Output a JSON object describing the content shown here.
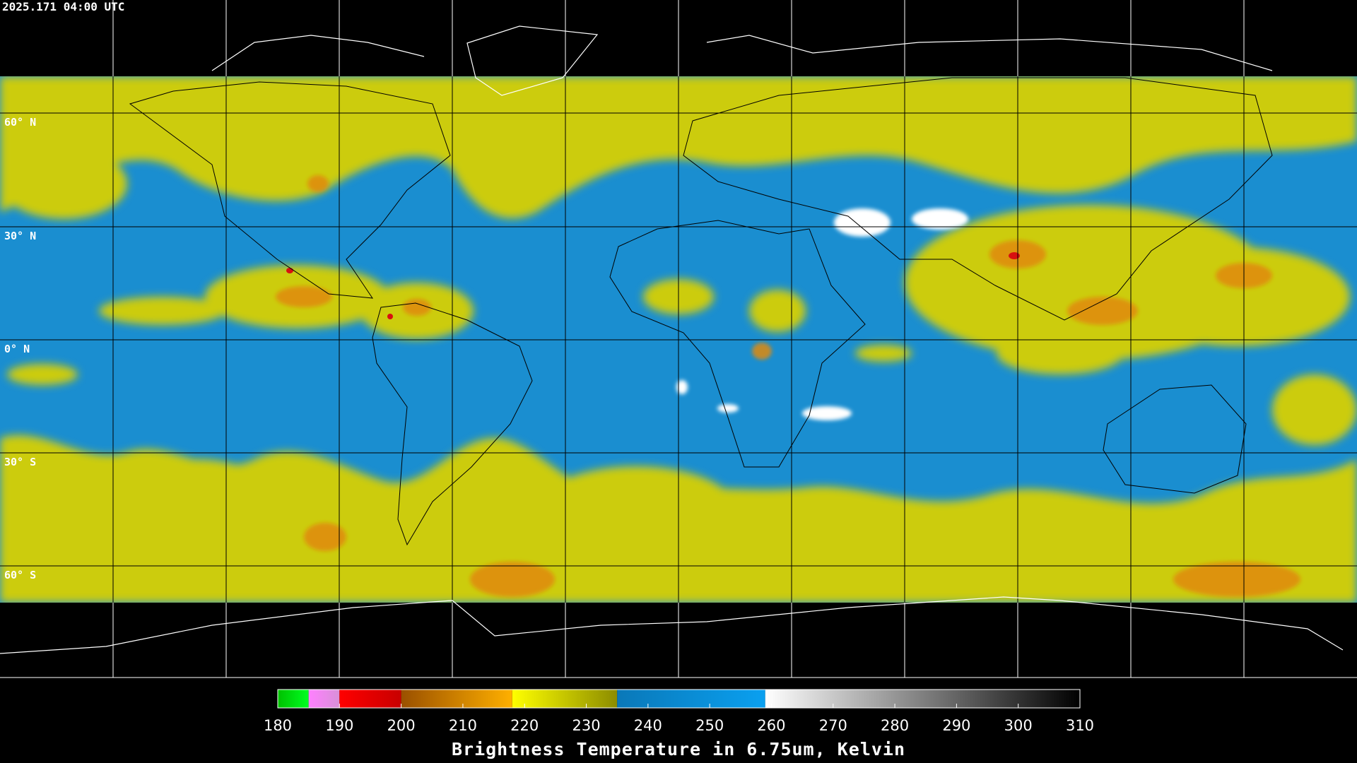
{
  "header": {
    "timestamp": "2025.171 04:00 UTC"
  },
  "map": {
    "lat_labels": [
      "60° N",
      "30° N",
      "0° N",
      "30° S",
      "60° S"
    ]
  },
  "colorbar": {
    "type": "colorbar",
    "label": "Brightness Temperature in 6.75um, Kelvin",
    "lim": [
      180,
      310
    ],
    "ticks": [
      180,
      190,
      200,
      210,
      220,
      230,
      240,
      250,
      260,
      270,
      280,
      290,
      300,
      310
    ],
    "segments": [
      {
        "from": 180,
        "to": 185,
        "colors": [
          "#00c000",
          "#00ff20"
        ]
      },
      {
        "from": 185,
        "to": 190,
        "colors": [
          "#ff80ff",
          "#d890d8"
        ]
      },
      {
        "from": 190,
        "to": 200,
        "colors": [
          "#ff0000",
          "#c80000"
        ]
      },
      {
        "from": 200,
        "to": 218,
        "colors": [
          "#9a5000",
          "#ffb000"
        ]
      },
      {
        "from": 218,
        "to": 235,
        "colors": [
          "#ffff00",
          "#8c8c00"
        ]
      },
      {
        "from": 235,
        "to": 259,
        "colors": [
          "#0a78b8",
          "#0aa0f0"
        ]
      },
      {
        "from": 259,
        "to": 310,
        "colors": [
          "#ffffff",
          "#000000"
        ]
      }
    ]
  }
}
